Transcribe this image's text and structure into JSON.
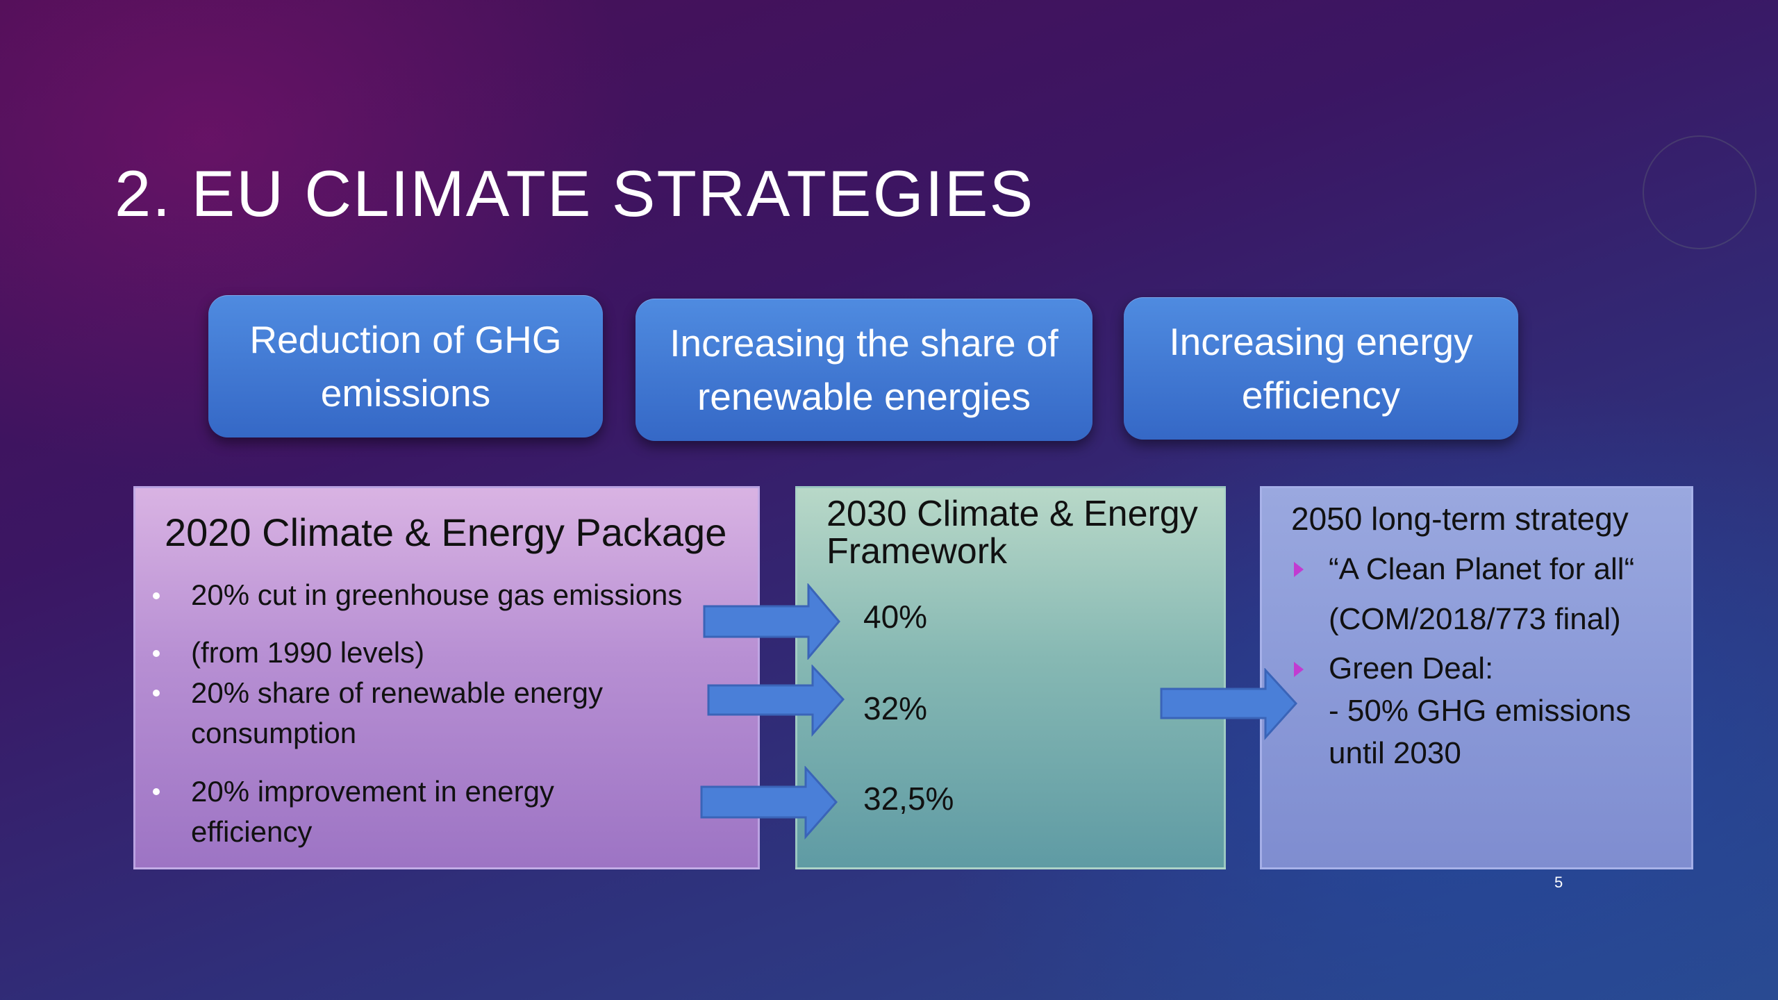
{
  "title": "2. EU CLIMATE STRATEGIES",
  "pills": [
    {
      "lines": [
        "Reduction of GHG",
        "emissions"
      ]
    },
    {
      "lines": [
        "Increasing the share of",
        "renewable energies"
      ]
    },
    {
      "lines": [
        "Increasing energy",
        "efficiency"
      ]
    }
  ],
  "box_2020": {
    "heading": "2020 Climate & Energy Package",
    "bullets": [
      [
        "20% cut in greenhouse gas emissions"
      ],
      [
        "(from 1990 levels)"
      ],
      [
        "20% share of renewable energy",
        "consumption"
      ],
      [
        "20% improvement in energy",
        "efficiency"
      ]
    ]
  },
  "box_2030": {
    "heading_lines": [
      "2030 Climate & Energy",
      "Framework"
    ],
    "values": [
      "40%",
      "32%",
      "32,5%"
    ]
  },
  "box_2050": {
    "heading": "2050 long-term strategy",
    "items": [
      {
        "lines": [
          "“A Clean Planet for all“",
          " (COM/2018/773 final)"
        ]
      },
      {
        "lines": [
          "Green Deal:",
          "- 50% GHG emissions",
          "until 2030"
        ]
      }
    ]
  },
  "page_number": "5",
  "colors": {
    "pill_blue": "#3f7bd6",
    "arrow_blue": "#4a7fd8",
    "bullet_magenta": "#c23bd1"
  }
}
